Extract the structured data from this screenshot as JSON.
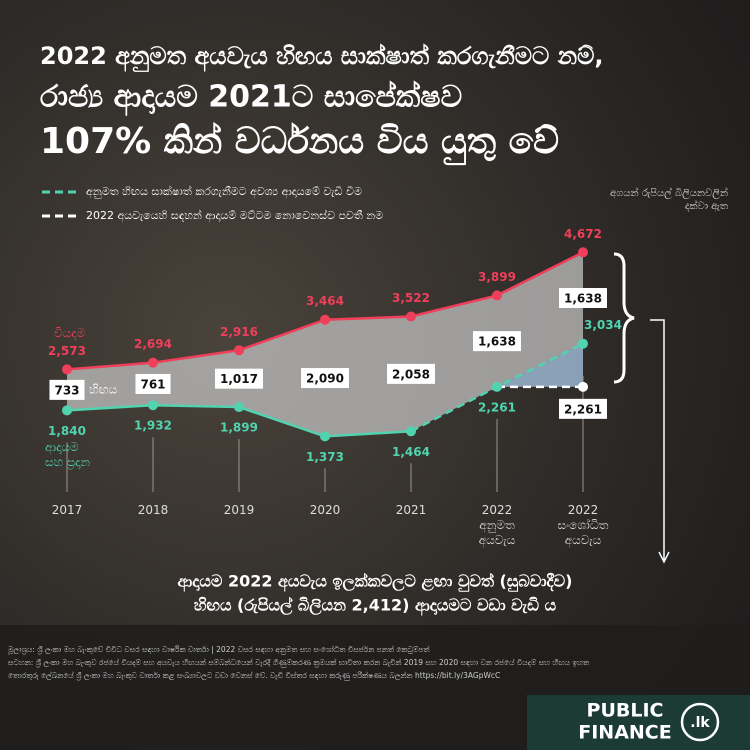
{
  "title": [
    "2022 අනුමත අයවැය හිඟය සාක්ෂාත් කරගැනීමට නම්,",
    "රාජ්‍ය ආදායම 2021ට සාපේක්ෂව",
    "107% කින් වර්ධනය විය යුතු වේ"
  ],
  "note": "අගයන් රුපියල් බිලියනවලින්\nදක්වා ඇත",
  "chart_data": {
    "type": "line",
    "categories": [
      "2017",
      "2018",
      "2019",
      "2020",
      "2021",
      "2022\nඅනුමත\nඅයවැය",
      "2022\nසංශෝධිත\nඅයවැය"
    ],
    "ylim": [
      0,
      5000
    ],
    "legend": [
      {
        "label": "අනුමත හිඟය සාක්ෂාත් කරගැනීමට අවශ්‍ය ආදායමේ වැඩි වීම",
        "color": "#52d3b0"
      },
      {
        "label": "2022 අයවැයෙහි සඳහන් ආදායම් මට්ටම නොවෙනස්ව පවතී නම",
        "color": "#ffffff"
      }
    ],
    "series": [
      {
        "name": "වියදම",
        "color": "#ef3f5a",
        "values": [
          2573,
          2694,
          2916,
          3464,
          3522,
          3899,
          4672
        ],
        "value_labels": [
          "2,573",
          "2,694",
          "2,916",
          "3,464",
          "3,522",
          "3,899",
          "4,672"
        ]
      },
      {
        "name": "ආදායම\nසහ ප්‍රදාන",
        "color": "#52d3b0",
        "values": [
          1840,
          1932,
          1899,
          1373,
          1464,
          2261,
          3034
        ],
        "value_labels": [
          "1,840",
          "1,932",
          "1,899",
          "1,373",
          "1,464",
          "2,261",
          "3,034"
        ],
        "dash_from": 4
      },
      {
        "name": "2022 අයවැයෙහි සඳහන් ආදායම් මට්ටම නොවෙනස්ව පවතී නම",
        "color": "#ffffff",
        "values": [
          null,
          null,
          null,
          null,
          null,
          null,
          2261
        ],
        "value_labels": [
          null,
          null,
          null,
          null,
          null,
          null,
          "2,261"
        ],
        "start_index": 5
      }
    ],
    "deficit": {
      "name": "හිඟය",
      "values": [
        733,
        761,
        1017,
        2090,
        2058,
        1638,
        1638
      ],
      "value_labels": [
        "733",
        "761",
        "1,017",
        "2,090",
        "2,058",
        "1,638",
        "1,638"
      ]
    }
  },
  "conclusion": [
    "ආදායම 2022 අයවැය ඉලක්කවලට ළඟා වුවත් (සුබවාදීව)",
    "හිඟය (රුපියල් බිලියන 2,412) ආදායමට වඩා වැඩි ය"
  ],
  "footnote": [
    "මූලාශ්‍රය: ශ්‍රී ලංකා මහ බැංකුවේ විවිධ වසර සඳහා වාර්ෂික වාර්තා | 2022 වසර සඳහා අනුමත සහ සංශෝධිත විසර්ජන පනත් කෙටුම්පත්",
    "සටහන: ශ්‍රී ලංකා මහ බැංකුව රජයේ වියදම් සහ අයවැය හිඟයන් සම්බන්ධයෙන් වැරදි ගිණුම්කරණ ක්‍රමයක් භාවිතා කරන බැවින් 2019 සහ 2020 සඳහා වන රජයේ වියදම් සහ හිඟය ඉහත",
    "තොරතුරු ලේඛනයේ ශ්‍රී ලංකා මහ බැංකුව වාර්තා කළ සංඛ්‍යාවලට වඩා වෙනස් වේ. වැඩි විස්තර සඳහා කරුණු පරීක්ෂණය බලන්න https://bit.ly/3AGpWcC"
  ],
  "logo": {
    "line1": "PUBLIC",
    "line2": "FINANCE",
    "suffix": ".lk"
  }
}
